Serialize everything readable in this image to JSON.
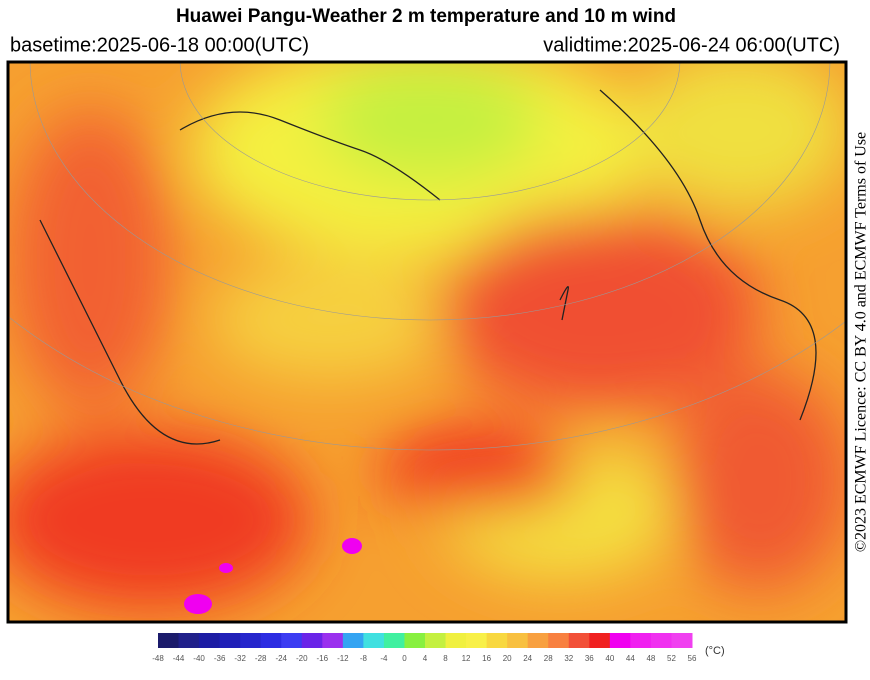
{
  "header": {
    "title": "Huawei Pangu-Weather  2 m temperature and 10 m wind",
    "basetime": "basetime:2025-06-18 00:00(UTC)",
    "validtime": "validtime:2025-06-24 06:00(UTC)"
  },
  "licence": "©2023 ECMWF Licence: CC BY 4.0 and ECMWF Terms of Use",
  "colorbar": {
    "unit": "(°C)",
    "ticks": [
      -48,
      -44,
      -40,
      -36,
      -32,
      -28,
      -24,
      -20,
      -16,
      -12,
      -8,
      -4,
      0,
      4,
      8,
      12,
      16,
      20,
      24,
      28,
      32,
      36,
      40,
      44,
      48,
      52,
      56
    ],
    "colors": [
      "#1b1b6b",
      "#20208a",
      "#1c1ca4",
      "#2020b8",
      "#2626cc",
      "#2c2ce2",
      "#3c3cf2",
      "#6a24e8",
      "#9a30ee",
      "#34a4f2",
      "#40e0e0",
      "#40f0a0",
      "#88f040",
      "#c4f040",
      "#f0f040",
      "#f8f048",
      "#f8d840",
      "#f8c040",
      "#f8a040",
      "#f88040",
      "#f25038",
      "#f02020",
      "#f000f0",
      "#f020f0",
      "#f030f0",
      "#f040f0"
    ]
  }
}
